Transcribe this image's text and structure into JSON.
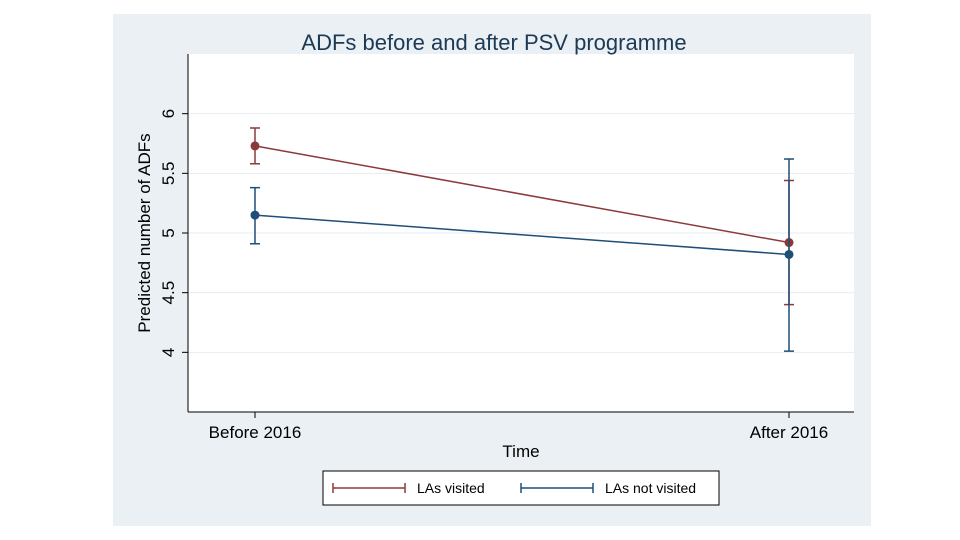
{
  "chart_data": {
    "type": "line",
    "title": "ADFs before and after PSV programme",
    "xlabel": "Time",
    "ylabel": "Predicted number of ADFs",
    "categories": [
      "Before 2016",
      "After 2016"
    ],
    "ylim": [
      3.5,
      6.5
    ],
    "yticks": [
      4,
      4.5,
      5,
      5.5,
      6
    ],
    "ytick_labels": [
      "4",
      "4.5",
      "5",
      "5.5",
      "6"
    ],
    "grid": true,
    "legend_position": "bottom",
    "series": [
      {
        "name": "LAs visited",
        "color": "#8b3a3a",
        "values": [
          5.73,
          4.92
        ],
        "ci_low": [
          5.58,
          4.4
        ],
        "ci_high": [
          5.88,
          5.44
        ]
      },
      {
        "name": "LAs not visited",
        "color": "#1f4e79",
        "values": [
          5.15,
          4.82
        ],
        "ci_low": [
          4.91,
          4.01
        ],
        "ci_high": [
          5.38,
          5.62
        ]
      }
    ]
  },
  "colors": {
    "outer_background": "#eaf0f3",
    "plot_background": "#ffffff",
    "grid": "#e6edf0",
    "title": "#1c3956"
  }
}
